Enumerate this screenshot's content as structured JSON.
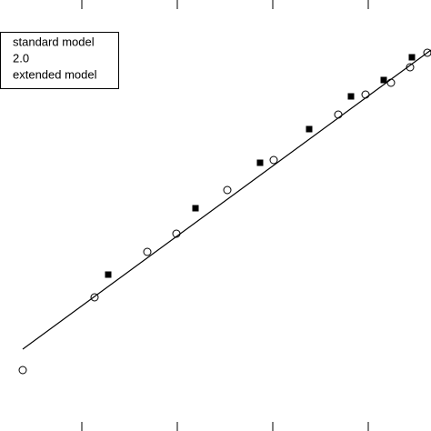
{
  "chart_data": {
    "type": "scatter",
    "xlim": [
      0,
      474
    ],
    "ylim": [
      0,
      474
    ],
    "xticks": [
      90,
      195,
      300,
      405
    ],
    "legend": "upper left",
    "series": [
      {
        "name": "standard model",
        "marker": "circle",
        "color": "#000000",
        "x": [
          25,
          104,
          162,
          194,
          250,
          301,
          372,
          402,
          430,
          451,
          470
        ],
        "values": [
          67,
          147,
          197,
          217,
          265,
          298,
          348,
          370,
          383,
          400,
          416
        ]
      },
      {
        "name": "2.0",
        "marker": "line",
        "color": "#000000",
        "x": [
          25,
          474
        ],
        "values": [
          90,
          419
        ]
      },
      {
        "name": "extended model",
        "marker": "square",
        "color": "#000000",
        "x": [
          119,
          215,
          286,
          340,
          386,
          422,
          453
        ],
        "values": [
          172,
          245,
          295,
          332,
          368,
          386,
          411
        ]
      }
    ]
  }
}
